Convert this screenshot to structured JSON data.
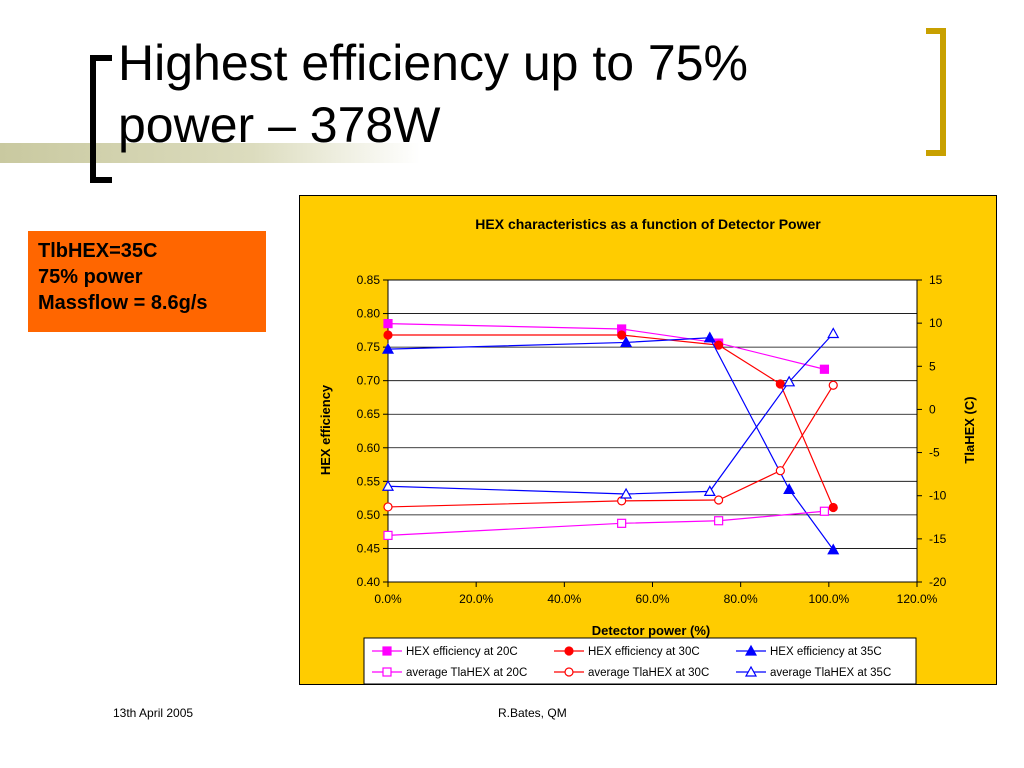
{
  "slide": {
    "title_line1": "Highest efficiency up to 75%",
    "title_line2": "power – 378W",
    "callout": [
      "TlbHEX=35C",
      "75% power",
      "Massflow = 8.6g/s"
    ],
    "footer_left": "13th April 2005",
    "footer_center": "R.Bates, QM",
    "colors": {
      "accent_gold": "#c8a000",
      "callout_bg": "#ff6600",
      "chart_bg": "#ffcc00"
    }
  },
  "chart_data": {
    "type": "line",
    "title": "HEX characteristics as a function of Detector Power",
    "xlabel": "Detector power (%)",
    "ylabel": "HEX efficiency",
    "y2label": "TlaHEX (C)",
    "xlim": [
      0,
      1.2
    ],
    "ylim": [
      0.4,
      0.85
    ],
    "y2lim": [
      -20,
      15
    ],
    "xticks": [
      "0.0%",
      "20.0%",
      "40.0%",
      "60.0%",
      "80.0%",
      "100.0%",
      "120.0%"
    ],
    "yticks": [
      "0.85",
      "0.80",
      "0.75",
      "0.70",
      "0.65",
      "0.60",
      "0.55",
      "0.50",
      "0.45",
      "0.40"
    ],
    "y2ticks": [
      "15",
      "10",
      "5",
      "0",
      "-5",
      "-10",
      "-15",
      "-20"
    ],
    "legend_position": "bottom",
    "series": [
      {
        "name": "HEX efficiency at 20C",
        "axis": "left",
        "color": "#ff00ff",
        "marker": "square",
        "filled": true,
        "x": [
          0.0,
          0.53,
          0.75,
          0.99
        ],
        "y": [
          0.785,
          0.777,
          0.756,
          0.717
        ]
      },
      {
        "name": "HEX efficiency at 30C",
        "axis": "left",
        "color": "#ff0000",
        "marker": "circle",
        "filled": true,
        "x": [
          0.0,
          0.53,
          0.75,
          0.89,
          1.01
        ],
        "y": [
          0.768,
          0.768,
          0.753,
          0.695,
          0.511
        ]
      },
      {
        "name": "HEX efficiency at 35C",
        "axis": "left",
        "color": "#0000ff",
        "marker": "triangle",
        "filled": true,
        "x": [
          0.0,
          0.54,
          0.73,
          0.91,
          1.01
        ],
        "y": [
          0.747,
          0.757,
          0.764,
          0.538,
          0.448
        ]
      },
      {
        "name": "average TlaHEX at 20C",
        "axis": "right",
        "color": "#ff00ff",
        "marker": "square",
        "filled": false,
        "x": [
          0.0,
          0.53,
          0.75,
          0.99
        ],
        "y": [
          -14.6,
          -13.2,
          -12.9,
          -11.8
        ]
      },
      {
        "name": "average TlaHEX at 30C",
        "axis": "right",
        "color": "#ff0000",
        "marker": "circle",
        "filled": false,
        "x": [
          0.0,
          0.53,
          0.75,
          0.89,
          1.01
        ],
        "y": [
          -11.3,
          -10.6,
          -10.5,
          -7.1,
          2.8
        ]
      },
      {
        "name": "average TlaHEX at 35C",
        "axis": "right",
        "color": "#0000ff",
        "marker": "triangle",
        "filled": false,
        "x": [
          0.0,
          0.54,
          0.73,
          0.91,
          1.01
        ],
        "y": [
          -8.9,
          -9.8,
          -9.5,
          3.2,
          8.8
        ]
      }
    ]
  }
}
